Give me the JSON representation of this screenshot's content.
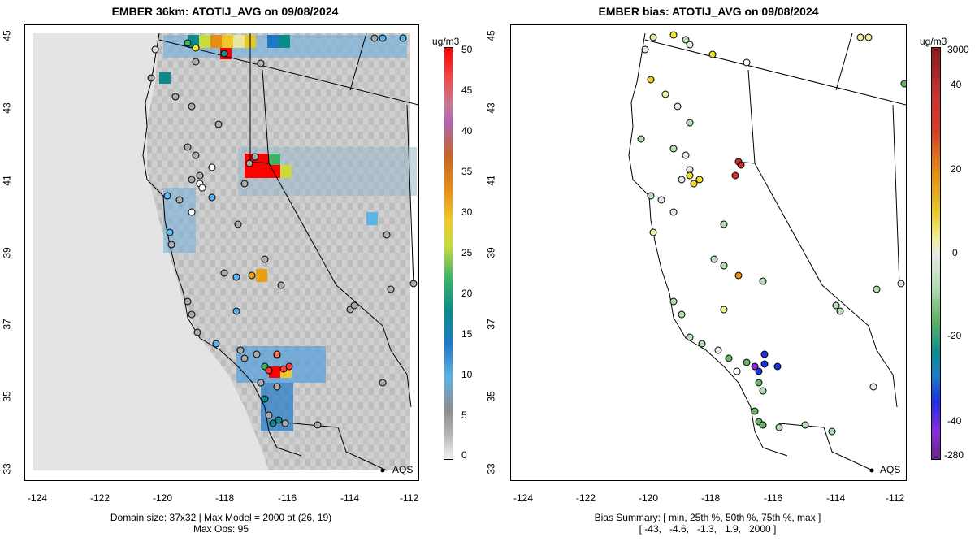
{
  "left_panel": {
    "title": "EMBER 36km: ATOTIJ_AVG on 09/08/2024",
    "x_ticks": [
      "-124",
      "-122",
      "-120",
      "-118",
      "-116",
      "-114",
      "-112"
    ],
    "y_ticks": [
      "33",
      "35",
      "37",
      "39",
      "41",
      "43",
      "45"
    ],
    "colorbar_title": "ug/m3",
    "colorbar_labels": [
      "50",
      "45",
      "40",
      "35",
      "30",
      "25",
      "20",
      "15",
      "10",
      "5",
      "0"
    ],
    "aqs_label": "AQS",
    "footer_line1": "Domain size: 37x32 | Max Model = 2000 at (26, 19)",
    "footer_line2": "Max Obs: 95"
  },
  "right_panel": {
    "title": "EMBER bias: ATOTIJ_AVG on 09/08/2024",
    "x_ticks": [
      "-124",
      "-122",
      "-120",
      "-118",
      "-116",
      "-114",
      "-112"
    ],
    "y_ticks": [
      "33",
      "35",
      "37",
      "39",
      "41",
      "43",
      "45"
    ],
    "colorbar_title": "ug/m3",
    "colorbar_labels": [
      "3000",
      "40",
      "20",
      "0",
      "-20",
      "-40",
      "-280"
    ],
    "aqs_label": "AQS",
    "footer_line1": "Bias Summary: [ min, 25th %, 50th %, 75th %, max ]",
    "footer_line2": "[ -43,   -4.6,   -1.3,   1.9,   2000 ]"
  },
  "colors": {
    "conc_scale": [
      "#f2f2f2",
      "#dcdcdc",
      "#b4b4b4",
      "#8c8c8c",
      "#5ab4e6",
      "#1e78c8",
      "#0a8c8c",
      "#3cb464",
      "#c8dc3c",
      "#f0c828",
      "#e68c14",
      "#c86428",
      "#c87896",
      "#b464b4",
      "#ff0000"
    ],
    "bias_scale": [
      "#6a2a8a",
      "#8a2ae0",
      "#1e32e6",
      "#1e78c8",
      "#0a8c8c",
      "#64b464",
      "#b4dcb4",
      "#e6e6e6",
      "#f0f0a0",
      "#e6c828",
      "#e68c14",
      "#c83232",
      "#a01e1e"
    ]
  }
}
